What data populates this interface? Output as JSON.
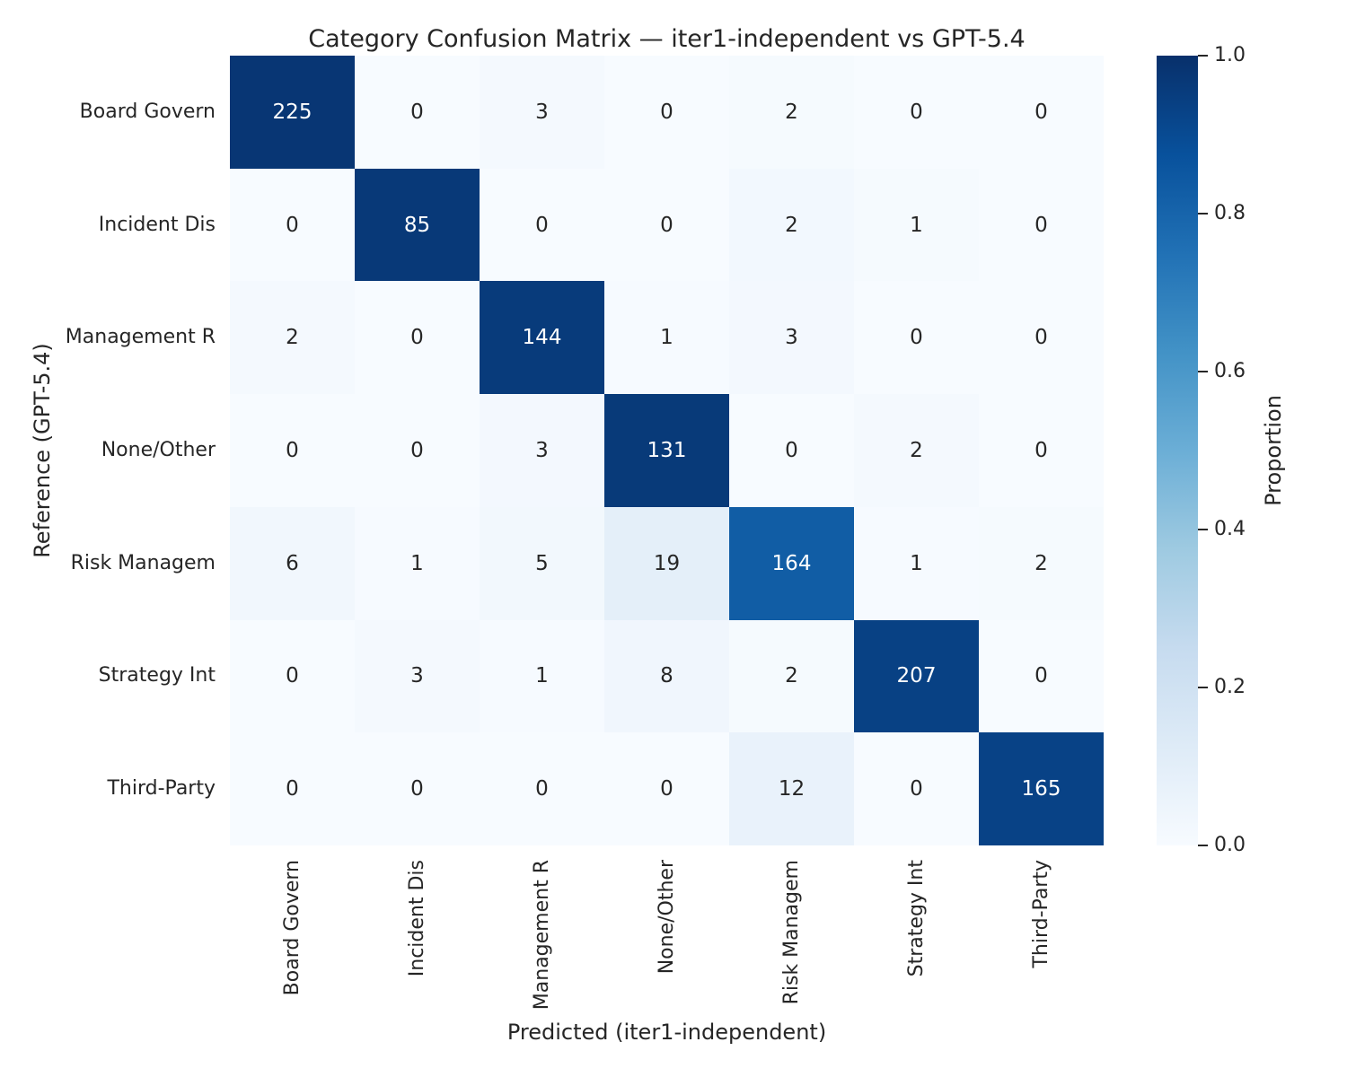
{
  "chart_data": {
    "type": "heatmap",
    "title": "Category Confusion Matrix — iter1-independent vs GPT-5.4",
    "xlabel": "Predicted (iter1-independent)",
    "ylabel": "Reference (GPT-5.4)",
    "x_categories": [
      "Board Govern",
      "Incident Dis",
      "Management R",
      "None/Other",
      "Risk Managem",
      "Strategy Int",
      "Third-Party"
    ],
    "y_categories": [
      "Board Govern",
      "Incident Dis",
      "Management R",
      "None/Other",
      "Risk Managem",
      "Strategy Int",
      "Third-Party"
    ],
    "values": [
      [
        225,
        0,
        3,
        0,
        2,
        0,
        0
      ],
      [
        0,
        85,
        0,
        0,
        2,
        1,
        0
      ],
      [
        2,
        0,
        144,
        1,
        3,
        0,
        0
      ],
      [
        0,
        0,
        3,
        131,
        0,
        2,
        0
      ],
      [
        6,
        1,
        5,
        19,
        164,
        1,
        2
      ],
      [
        0,
        3,
        1,
        8,
        2,
        207,
        0
      ],
      [
        0,
        0,
        0,
        0,
        12,
        0,
        165
      ]
    ],
    "normalization": "row-proportion",
    "color_scale": {
      "name": "Blues",
      "anchors": [
        "#f7fbff",
        "#deebf7",
        "#c6dbef",
        "#9ecae1",
        "#6baed6",
        "#4292c6",
        "#2171b5",
        "#08519c",
        "#08306b"
      ]
    },
    "colorbar": {
      "label": "Proportion",
      "min": 0,
      "max": 1,
      "tick_labels": [
        "1.0",
        "0.8",
        "0.6",
        "0.4",
        "0.2",
        "0.0"
      ],
      "tick_values": [
        1.0,
        0.8,
        0.6,
        0.4,
        0.2,
        0.0
      ]
    },
    "annotation_text_dark": "#262626",
    "annotation_text_light": "#ffffff",
    "legend_position": "right",
    "grid": false
  }
}
